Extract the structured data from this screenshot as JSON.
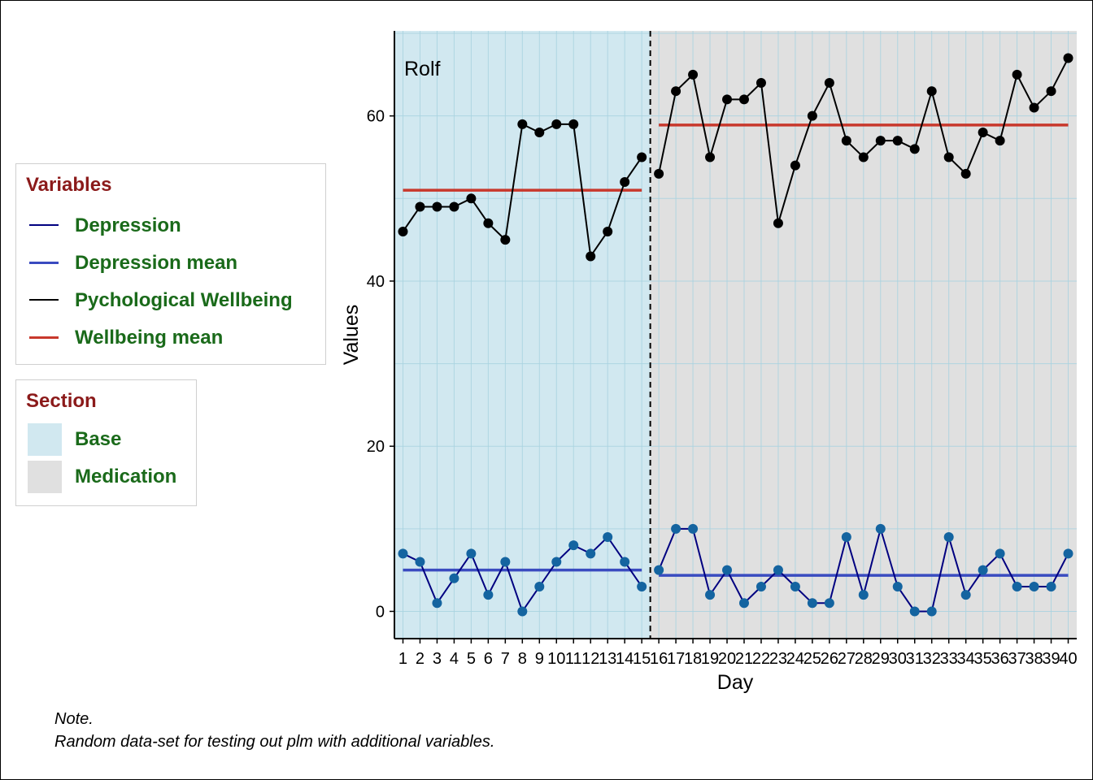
{
  "legends": {
    "variables": {
      "title": "Variables",
      "items": [
        {
          "label": "Depression",
          "color": "#000080",
          "style": "line-thin"
        },
        {
          "label": "Depression mean",
          "color": "#3a4bc0",
          "style": "line-thick"
        },
        {
          "label": "Pychological Wellbeing",
          "color": "#000000",
          "style": "line-thin"
        },
        {
          "label": "Wellbeing mean",
          "color": "#c8382c",
          "style": "line-thick"
        }
      ]
    },
    "section": {
      "title": "Section",
      "items": [
        {
          "label": "Base",
          "color": "#d1e8f0"
        },
        {
          "label": "Medication",
          "color": "#e0e0e0"
        }
      ]
    }
  },
  "note": {
    "line1": "Note.",
    "line2": "Random data-set for testing out plm with additional variables."
  },
  "chart_data": {
    "type": "line",
    "panel_label": "Rolf",
    "xlabel": "Day",
    "ylabel": "Values",
    "x": [
      1,
      2,
      3,
      4,
      5,
      6,
      7,
      8,
      9,
      10,
      11,
      12,
      13,
      14,
      15,
      16,
      17,
      18,
      19,
      20,
      21,
      22,
      23,
      24,
      25,
      26,
      27,
      28,
      29,
      30,
      31,
      32,
      33,
      34,
      35,
      36,
      37,
      38,
      39,
      40
    ],
    "x_range": [
      0.5,
      40.5
    ],
    "ylim": [
      -3.3,
      70.3
    ],
    "yticks": [
      0,
      20,
      40,
      60
    ],
    "phase_change_after_day": 15,
    "phases": [
      {
        "name": "Base",
        "start": 1,
        "end": 15,
        "color": "#d1e8f0"
      },
      {
        "name": "Medication",
        "start": 16,
        "end": 40,
        "color": "#e0e0e0"
      }
    ],
    "series": [
      {
        "name": "Pychological Wellbeing",
        "color": "#000000",
        "point_color": "#000000",
        "values": [
          46,
          49,
          49,
          49,
          50,
          47,
          45,
          59,
          58,
          59,
          59,
          43,
          46,
          52,
          55,
          53,
          63,
          65,
          55,
          62,
          62,
          64,
          47,
          54,
          60,
          64,
          57,
          55,
          57,
          57,
          56,
          63,
          55,
          53,
          58,
          57,
          65,
          61,
          63,
          67
        ]
      },
      {
        "name": "Depression",
        "color": "#000080",
        "point_color": "#1464a0",
        "values": [
          7,
          6,
          1,
          4,
          7,
          2,
          6,
          0,
          3,
          6,
          8,
          7,
          9,
          6,
          3,
          5,
          10,
          10,
          2,
          5,
          1,
          3,
          5,
          3,
          1,
          1,
          9,
          2,
          10,
          3,
          0,
          0,
          9,
          2,
          5,
          7,
          3,
          3,
          3,
          7
        ]
      }
    ],
    "means": [
      {
        "name": "Wellbeing mean",
        "color": "#c8382c",
        "segments": [
          {
            "start": 1,
            "end": 15,
            "value": 51.0
          },
          {
            "start": 16,
            "end": 40,
            "value": 58.9
          }
        ]
      },
      {
        "name": "Depression mean",
        "color": "#3a4bc0",
        "segments": [
          {
            "start": 1,
            "end": 15,
            "value": 5.0
          },
          {
            "start": 16,
            "end": 40,
            "value": 4.36
          }
        ]
      }
    ]
  }
}
